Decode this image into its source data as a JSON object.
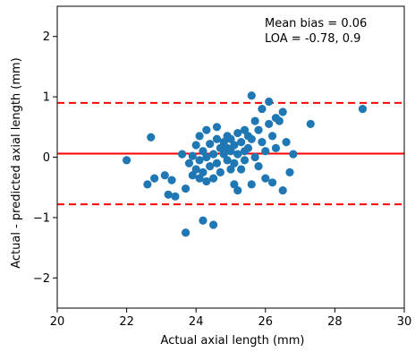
{
  "chart_data": {
    "type": "scatter",
    "title": "",
    "xlabel": "Actual axial length (mm)",
    "ylabel": "Actual - predicted axial length (mm)",
    "xlim": [
      20,
      30
    ],
    "ylim": [
      -2.5,
      2.5
    ],
    "xticks": [
      20,
      22,
      24,
      26,
      28,
      30
    ],
    "yticks": [
      -2,
      -1,
      0,
      1,
      2
    ],
    "grid": false,
    "marker_color": "#1f77b4",
    "line_color": "#ff0000",
    "annotation": [
      "Mean bias = 0.06",
      "LOA = -0.78, 0.9"
    ],
    "reference_lines": [
      {
        "kind": "mean",
        "y": 0.06,
        "style": "solid"
      },
      {
        "kind": "upper_loa",
        "y": 0.9,
        "style": "dashed"
      },
      {
        "kind": "lower_loa",
        "y": -0.78,
        "style": "dashed"
      }
    ],
    "points": [
      {
        "x": 22.0,
        "y": -0.05
      },
      {
        "x": 22.6,
        "y": -0.45
      },
      {
        "x": 22.7,
        "y": 0.33
      },
      {
        "x": 22.8,
        "y": -0.35
      },
      {
        "x": 23.1,
        "y": -0.3
      },
      {
        "x": 23.2,
        "y": -0.62
      },
      {
        "x": 23.3,
        "y": -0.38
      },
      {
        "x": 23.4,
        "y": -0.65
      },
      {
        "x": 23.6,
        "y": 0.05
      },
      {
        "x": 23.7,
        "y": -1.25
      },
      {
        "x": 23.7,
        "y": -0.52
      },
      {
        "x": 23.8,
        "y": -0.1
      },
      {
        "x": 23.9,
        "y": 0.02
      },
      {
        "x": 23.9,
        "y": -0.3
      },
      {
        "x": 24.0,
        "y": 0.2
      },
      {
        "x": 24.0,
        "y": -0.2
      },
      {
        "x": 24.1,
        "y": 0.35
      },
      {
        "x": 24.1,
        "y": -0.05
      },
      {
        "x": 24.1,
        "y": -0.35
      },
      {
        "x": 24.2,
        "y": -1.05
      },
      {
        "x": 24.2,
        "y": 0.1
      },
      {
        "x": 24.2,
        "y": -0.25
      },
      {
        "x": 24.3,
        "y": 0.45
      },
      {
        "x": 24.3,
        "y": 0.0
      },
      {
        "x": 24.3,
        "y": -0.4
      },
      {
        "x": 24.4,
        "y": 0.22
      },
      {
        "x": 24.4,
        "y": -0.15
      },
      {
        "x": 24.5,
        "y": -1.12
      },
      {
        "x": 24.5,
        "y": 0.05
      },
      {
        "x": 24.5,
        "y": -0.35
      },
      {
        "x": 24.6,
        "y": 0.3
      },
      {
        "x": 24.6,
        "y": 0.5
      },
      {
        "x": 24.6,
        "y": -0.1
      },
      {
        "x": 24.7,
        "y": 0.15
      },
      {
        "x": 24.7,
        "y": -0.25
      },
      {
        "x": 24.8,
        "y": 0.05
      },
      {
        "x": 24.8,
        "y": 0.25
      },
      {
        "x": 24.9,
        "y": -0.05
      },
      {
        "x": 24.9,
        "y": 0.35
      },
      {
        "x": 24.9,
        "y": 0.15
      },
      {
        "x": 25.0,
        "y": -0.2
      },
      {
        "x": 25.0,
        "y": 0.1
      },
      {
        "x": 25.0,
        "y": 0.3
      },
      {
        "x": 25.1,
        "y": 0.2
      },
      {
        "x": 25.1,
        "y": -0.45
      },
      {
        "x": 25.1,
        "y": -0.1
      },
      {
        "x": 25.2,
        "y": 0.4
      },
      {
        "x": 25.2,
        "y": 0.05
      },
      {
        "x": 25.2,
        "y": -0.55
      },
      {
        "x": 25.3,
        "y": 0.25
      },
      {
        "x": 25.3,
        "y": -0.2
      },
      {
        "x": 25.4,
        "y": 0.45
      },
      {
        "x": 25.4,
        "y": 0.1
      },
      {
        "x": 25.4,
        "y": -0.05
      },
      {
        "x": 25.5,
        "y": 0.35
      },
      {
        "x": 25.5,
        "y": 0.15
      },
      {
        "x": 25.6,
        "y": 1.02
      },
      {
        "x": 25.6,
        "y": -0.45
      },
      {
        "x": 25.6,
        "y": 0.3
      },
      {
        "x": 25.7,
        "y": 0.0
      },
      {
        "x": 25.7,
        "y": 0.6
      },
      {
        "x": 25.8,
        "y": 0.45
      },
      {
        "x": 25.8,
        "y": -0.15
      },
      {
        "x": 25.9,
        "y": 0.25
      },
      {
        "x": 25.9,
        "y": 0.8
      },
      {
        "x": 26.0,
        "y": 0.1
      },
      {
        "x": 26.0,
        "y": -0.35
      },
      {
        "x": 26.1,
        "y": 0.55
      },
      {
        "x": 26.1,
        "y": 0.92
      },
      {
        "x": 26.2,
        "y": 0.35
      },
      {
        "x": 26.2,
        "y": -0.42
      },
      {
        "x": 26.3,
        "y": 0.65
      },
      {
        "x": 26.3,
        "y": 0.15
      },
      {
        "x": 26.4,
        "y": 0.6
      },
      {
        "x": 26.5,
        "y": -0.55
      },
      {
        "x": 26.5,
        "y": 0.75
      },
      {
        "x": 26.6,
        "y": 0.25
      },
      {
        "x": 26.7,
        "y": -0.25
      },
      {
        "x": 26.8,
        "y": 0.05
      },
      {
        "x": 27.3,
        "y": 0.55
      },
      {
        "x": 28.8,
        "y": 0.8
      }
    ]
  }
}
